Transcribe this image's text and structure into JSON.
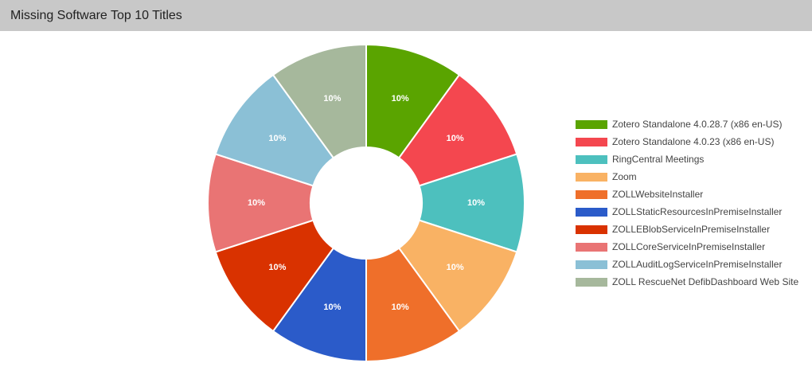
{
  "header": {
    "title": "Missing Software Top 10 Titles"
  },
  "chart_data": {
    "type": "pie",
    "variant": "donut",
    "title": "Missing Software Top 10 Titles",
    "legend_position": "right",
    "slices": [
      {
        "label": "Zotero Standalone 4.0.28.7 (x86 en-US)",
        "value": 10,
        "display": "10%",
        "color": "#5aa400"
      },
      {
        "label": "Zotero Standalone 4.0.23 (x86 en-US)",
        "value": 10,
        "display": "10%",
        "color": "#f4474f"
      },
      {
        "label": "RingCentral Meetings",
        "value": 10,
        "display": "10%",
        "color": "#4dc0be"
      },
      {
        "label": "Zoom",
        "value": 10,
        "display": "10%",
        "color": "#f9b264"
      },
      {
        "label": "ZOLLWebsiteInstaller",
        "value": 10,
        "display": "10%",
        "color": "#ef6f2a"
      },
      {
        "label": "ZOLLStaticResourcesInPremiseInstaller",
        "value": 10,
        "display": "10%",
        "color": "#2b5bc9"
      },
      {
        "label": "ZOLLEBlobServiceInPremiseInstaller",
        "value": 10,
        "display": "10%",
        "color": "#d93200"
      },
      {
        "label": "ZOLLCoreServiceInPremiseInstaller",
        "value": 10,
        "display": "10%",
        "color": "#e97474"
      },
      {
        "label": "ZOLLAuditLogServiceInPremiseInstaller",
        "value": 10,
        "display": "10%",
        "color": "#8bc0d6"
      },
      {
        "label": "ZOLL RescueNet DefibDashboard Web Site",
        "value": 10,
        "display": "10%",
        "color": "#a6b89c"
      }
    ]
  }
}
